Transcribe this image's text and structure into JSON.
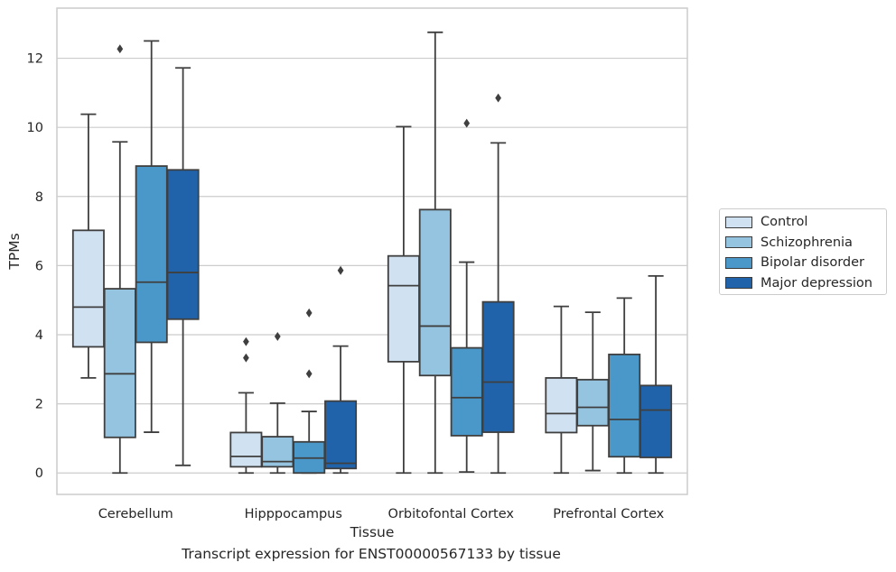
{
  "chart_data": {
    "type": "box",
    "title": "",
    "caption": "Transcript expression for ENST00000567133 by tissue",
    "xlabel": "Tissue",
    "ylabel": "TPMs",
    "ylim": [
      -0.62,
      13.45
    ],
    "yticks": [
      0,
      2,
      4,
      6,
      8,
      10,
      12
    ],
    "grid": true,
    "legend_position": "right",
    "categories": [
      "Cerebellum",
      "Hipppocampus",
      "Orbitofontal Cortex",
      "Prefrontal Cortex"
    ],
    "series": [
      {
        "name": "Control",
        "color": "#d0e1f2",
        "boxes": [
          {
            "whisker_low": 2.75,
            "q1": 3.65,
            "median": 4.8,
            "q3": 7.02,
            "whisker_high": 10.38,
            "outliers": []
          },
          {
            "whisker_low": 0.0,
            "q1": 0.18,
            "median": 0.48,
            "q3": 1.17,
            "whisker_high": 2.32,
            "outliers": [
              3.33,
              3.8
            ]
          },
          {
            "whisker_low": 0.0,
            "q1": 3.22,
            "median": 5.42,
            "q3": 6.28,
            "whisker_high": 10.02,
            "outliers": []
          },
          {
            "whisker_low": 0.0,
            "q1": 1.17,
            "median": 1.72,
            "q3": 2.75,
            "whisker_high": 4.82,
            "outliers": []
          }
        ]
      },
      {
        "name": "Schizophrenia",
        "color": "#94c4df",
        "boxes": [
          {
            "whisker_low": 0.0,
            "q1": 1.03,
            "median": 2.87,
            "q3": 5.33,
            "whisker_high": 9.58,
            "outliers": [
              12.27
            ]
          },
          {
            "whisker_low": 0.0,
            "q1": 0.18,
            "median": 0.33,
            "q3": 1.05,
            "whisker_high": 2.02,
            "outliers": [
              3.95
            ]
          },
          {
            "whisker_low": 0.0,
            "q1": 2.82,
            "median": 4.25,
            "q3": 7.62,
            "whisker_high": 12.75,
            "outliers": []
          },
          {
            "whisker_low": 0.07,
            "q1": 1.37,
            "median": 1.9,
            "q3": 2.7,
            "whisker_high": 4.65,
            "outliers": []
          }
        ]
      },
      {
        "name": "Bipolar disorder",
        "color": "#4a98c9",
        "boxes": [
          {
            "whisker_low": 1.18,
            "q1": 3.78,
            "median": 5.52,
            "q3": 8.88,
            "whisker_high": 12.5,
            "outliers": []
          },
          {
            "whisker_low": 0.0,
            "q1": 0.0,
            "median": 0.43,
            "q3": 0.9,
            "whisker_high": 1.78,
            "outliers": [
              2.87,
              4.63
            ]
          },
          {
            "whisker_low": 0.03,
            "q1": 1.08,
            "median": 2.18,
            "q3": 3.62,
            "whisker_high": 6.1,
            "outliers": [
              10.12
            ]
          },
          {
            "whisker_low": 0.0,
            "q1": 0.47,
            "median": 1.55,
            "q3": 3.43,
            "whisker_high": 5.06,
            "outliers": []
          }
        ]
      },
      {
        "name": "Major depression",
        "color": "#2163aa",
        "boxes": [
          {
            "whisker_low": 0.22,
            "q1": 4.45,
            "median": 5.8,
            "q3": 8.77,
            "whisker_high": 11.72,
            "outliers": []
          },
          {
            "whisker_low": 0.0,
            "q1": 0.13,
            "median": 0.28,
            "q3": 2.08,
            "whisker_high": 3.67,
            "outliers": [
              5.86
            ]
          },
          {
            "whisker_low": 0.0,
            "q1": 1.18,
            "median": 2.63,
            "q3": 4.95,
            "whisker_high": 9.55,
            "outliers": [
              10.85
            ]
          },
          {
            "whisker_low": 0.0,
            "q1": 0.45,
            "median": 1.82,
            "q3": 2.53,
            "whisker_high": 5.7,
            "outliers": []
          }
        ]
      }
    ]
  }
}
